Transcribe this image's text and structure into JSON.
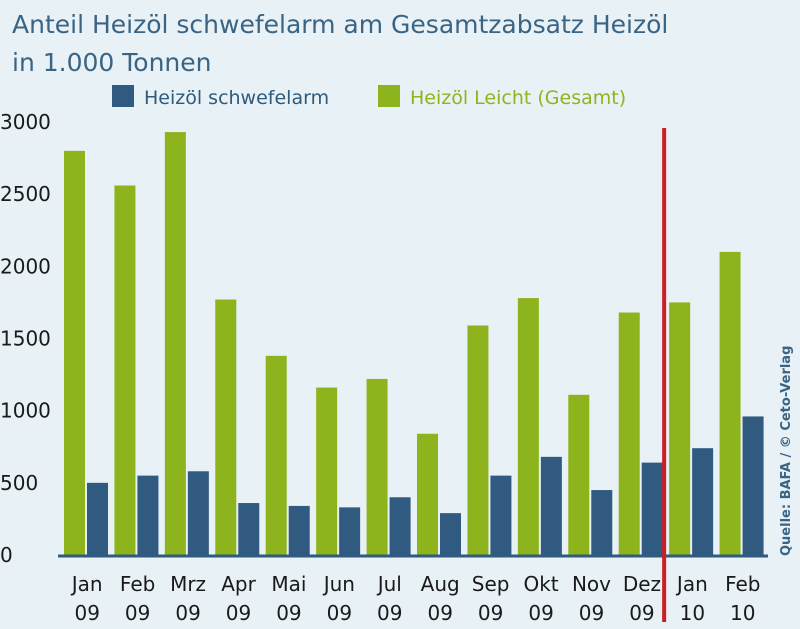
{
  "chart_data": {
    "type": "bar",
    "title": "Anteil Heizöl schwefelarm am Gesamtzabsatz Heizöl",
    "subtitle": "in 1.000 Tonnen",
    "categories": [
      {
        "month": "Jan",
        "year": "09"
      },
      {
        "month": "Feb",
        "year": "09"
      },
      {
        "month": "Mrz",
        "year": "09"
      },
      {
        "month": "Apr",
        "year": "09"
      },
      {
        "month": "Mai",
        "year": "09"
      },
      {
        "month": "Jun",
        "year": "09"
      },
      {
        "month": "Jul",
        "year": "09"
      },
      {
        "month": "Aug",
        "year": "09"
      },
      {
        "month": "Sep",
        "year": "09"
      },
      {
        "month": "Okt",
        "year": "09"
      },
      {
        "month": "Nov",
        "year": "09"
      },
      {
        "month": "Dez",
        "year": "09"
      },
      {
        "month": "Jan",
        "year": "10"
      },
      {
        "month": "Feb",
        "year": "10"
      }
    ],
    "series": [
      {
        "name": "Heizöl Leicht (Gesamt)",
        "color": "#8db31d",
        "values": [
          2800,
          2560,
          2930,
          1770,
          1380,
          1160,
          1220,
          840,
          1590,
          1780,
          1110,
          1680,
          1750,
          2100
        ]
      },
      {
        "name": "Heizöl schwefelarm",
        "color": "#305a80",
        "values": [
          500,
          550,
          580,
          360,
          340,
          330,
          400,
          290,
          550,
          680,
          450,
          640,
          740,
          960
        ]
      }
    ],
    "yticks": [
      0,
      500,
      1000,
      1500,
      2000,
      2500,
      3000
    ],
    "ylim": [
      0,
      3000
    ],
    "legend_position": "top",
    "grid": false,
    "marker": {
      "after_category": "Dez 09",
      "color": "#cc1f24"
    },
    "source": "Quelle: BAFA / © Ceto-Verlag"
  }
}
